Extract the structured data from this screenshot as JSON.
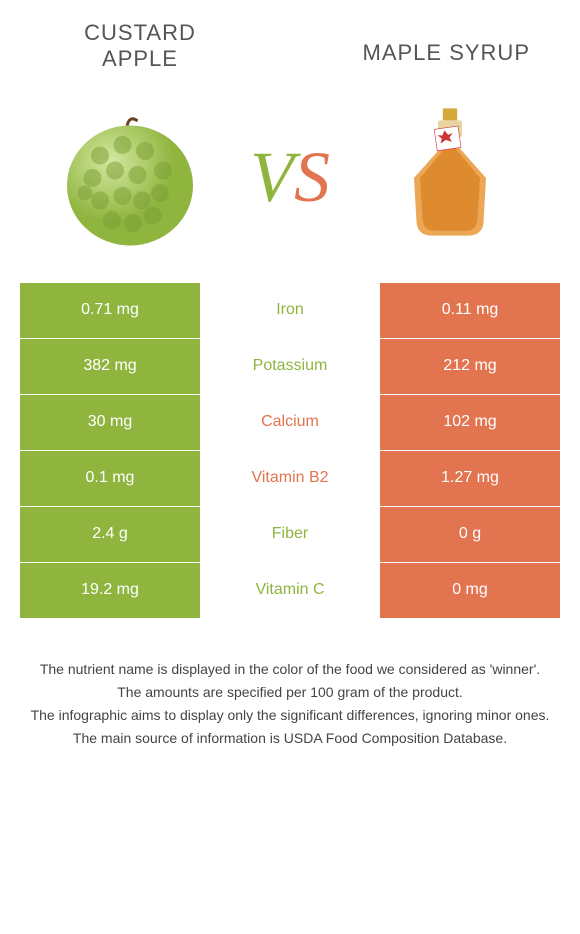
{
  "left": {
    "name": "Custard apple",
    "color": "#8fb53f"
  },
  "right": {
    "name": "Maple syrup",
    "color": "#e27450"
  },
  "vs": {
    "v": "V",
    "s": "S"
  },
  "rows": [
    {
      "nutrient": "Iron",
      "left": "0.71 mg",
      "right": "0.11 mg",
      "winner": "left"
    },
    {
      "nutrient": "Potassium",
      "left": "382 mg",
      "right": "212 mg",
      "winner": "left"
    },
    {
      "nutrient": "Calcium",
      "left": "30 mg",
      "right": "102 mg",
      "winner": "right"
    },
    {
      "nutrient": "Vitamin B2",
      "left": "0.1 mg",
      "right": "1.27 mg",
      "winner": "right"
    },
    {
      "nutrient": "Fiber",
      "left": "2.4 g",
      "right": "0 g",
      "winner": "left"
    },
    {
      "nutrient": "Vitamin C",
      "left": "19.2 mg",
      "right": "0 mg",
      "winner": "left"
    }
  ],
  "footnotes": [
    "The nutrient name is displayed in the color of the food we considered as 'winner'.",
    "The amounts are specified per 100 gram of the product.",
    "The infographic aims to display only the significant differences, ignoring minor ones.",
    "The main source of information is USDA Food Composition Database."
  ]
}
